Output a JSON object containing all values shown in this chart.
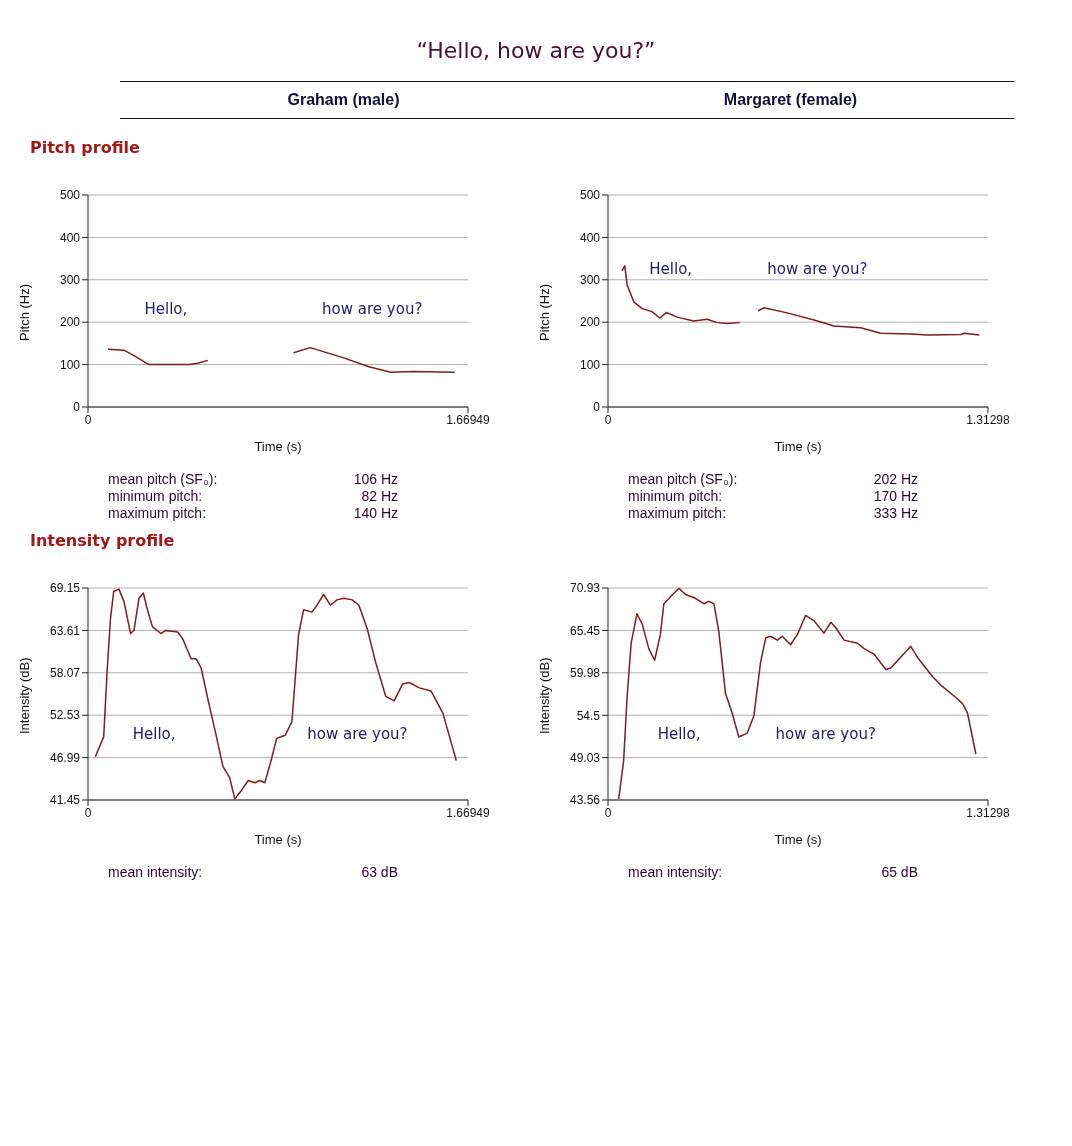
{
  "chart_data": [
    {
      "type": "line",
      "title": "“Hello, how are you?”",
      "subtitle": "Graham (male)",
      "xlabel": "Time (s)",
      "ylabel": "Pitch (Hz)",
      "xlim": [
        0,
        1.66949
      ],
      "xticks": [
        0,
        1.66949
      ],
      "ylim": [
        0,
        500
      ],
      "yticks": [
        0,
        100,
        200,
        300,
        400,
        500
      ],
      "grid": "y",
      "legend": false,
      "marker": "none",
      "line_style": "solid",
      "x": [
        0.088,
        0.158,
        0.202,
        0.268,
        0.445,
        0.482,
        0.527,
        0.7,
        0.903,
        0.976,
        1.117,
        1.234,
        1.33,
        1.426,
        1.611
      ],
      "series": [
        {
          "color": "#7a1f1f",
          "values": [
            136,
            134,
            121,
            100,
            100,
            103,
            110,
            null,
            128,
            140,
            117,
            95,
            82,
            84,
            82
          ]
        }
      ],
      "annotations": [
        "Pitch profile",
        "Hello,",
        "how are you?",
        "mean pitch (SF₀):",
        "106 Hz",
        "minimum pitch:",
        "82 Hz",
        "maximum pitch:",
        "140 Hz"
      ]
    },
    {
      "type": "line",
      "subtitle": "Margaret (female)",
      "xlabel": "Time (s)",
      "ylabel": "Pitch (Hz)",
      "xlim": [
        0,
        1.31298
      ],
      "xticks": [
        0,
        1.31298
      ],
      "ylim": [
        0,
        500
      ],
      "yticks": [
        0,
        100,
        200,
        300,
        400,
        500
      ],
      "grid": "y",
      "legend": false,
      "marker": "none",
      "line_style": "solid",
      "x": [
        0.048,
        0.058,
        0.066,
        0.089,
        0.118,
        0.152,
        0.179,
        0.202,
        0.239,
        0.296,
        0.343,
        0.377,
        0.412,
        0.456,
        0.49,
        0.519,
        0.539,
        0.619,
        0.712,
        0.781,
        0.873,
        0.942,
        1.046,
        1.104,
        1.219,
        1.231,
        1.283
      ],
      "series": [
        {
          "color": "#7a1f1f",
          "values": [
            321,
            333,
            288,
            248,
            232,
            225,
            210,
            223,
            212,
            203,
            207,
            199,
            197,
            199,
            null,
            227,
            234,
            222,
            205,
            191,
            187,
            174,
            172,
            170,
            171,
            174,
            170
          ]
        }
      ],
      "annotations": [
        "Hello,",
        "how are you?",
        "mean pitch (SF₀):",
        "202 Hz",
        "minimum pitch:",
        "170 Hz",
        "maximum pitch:",
        "333 Hz"
      ]
    },
    {
      "type": "line",
      "xlabel": "Time (s)",
      "ylabel": "Intensity (dB)",
      "xlim": [
        0,
        1.66949
      ],
      "xticks": [
        0,
        1.66949
      ],
      "ylim": [
        41.45,
        69.15
      ],
      "yticks": [
        41.45,
        46.99,
        52.53,
        58.07,
        63.61,
        69.15
      ],
      "grid": "y",
      "legend": false,
      "marker": "none",
      "line_style": "solid",
      "x": [
        0.032,
        0.069,
        0.084,
        0.099,
        0.113,
        0.136,
        0.158,
        0.187,
        0.202,
        0.224,
        0.243,
        0.261,
        0.283,
        0.32,
        0.342,
        0.394,
        0.416,
        0.453,
        0.475,
        0.497,
        0.527,
        0.563,
        0.593,
        0.622,
        0.645,
        0.674,
        0.704,
        0.733,
        0.755,
        0.777,
        0.807,
        0.829,
        0.866,
        0.896,
        0.925,
        0.947,
        0.984,
        1.006,
        1.035,
        1.065,
        1.094,
        1.124,
        1.161,
        1.19,
        1.227,
        1.264,
        1.308,
        1.345,
        1.382,
        1.411,
        1.456,
        1.507,
        1.559,
        1.618
      ],
      "series": [
        {
          "color": "#7a1f1f",
          "values": [
            47.1,
            49.7,
            58.3,
            65.2,
            68.7,
            69.0,
            67.4,
            63.2,
            63.6,
            67.8,
            68.5,
            66.3,
            64.1,
            63.2,
            63.6,
            63.4,
            62.5,
            59.9,
            59.9,
            58.7,
            54.6,
            49.9,
            45.8,
            44.4,
            41.6,
            42.7,
            44.0,
            43.7,
            44.0,
            43.7,
            46.9,
            49.5,
            49.9,
            51.7,
            63.0,
            66.3,
            66.0,
            66.9,
            68.3,
            66.9,
            67.6,
            67.8,
            67.6,
            66.9,
            63.8,
            59.4,
            55.0,
            54.4,
            56.6,
            56.8,
            56.1,
            55.7,
            52.8,
            46.6
          ]
        }
      ],
      "annotations": [
        "Intensity profile",
        "Hello,",
        "how are you?",
        "mean intensity:",
        "63 dB"
      ]
    },
    {
      "type": "line",
      "xlabel": "Time (s)",
      "ylabel": "Intensity (dB)",
      "xlim": [
        0,
        1.31298
      ],
      "xticks": [
        0,
        1.31298
      ],
      "ylim": [
        43.56,
        70.93
      ],
      "yticks": [
        43.56,
        49.03,
        54.5,
        59.98,
        65.45,
        70.93
      ],
      "grid": "y",
      "legend": false,
      "marker": "none",
      "line_style": "solid",
      "x": [
        0.037,
        0.054,
        0.066,
        0.08,
        0.1,
        0.118,
        0.141,
        0.161,
        0.181,
        0.193,
        0.216,
        0.245,
        0.268,
        0.302,
        0.331,
        0.348,
        0.366,
        0.383,
        0.406,
        0.429,
        0.452,
        0.481,
        0.504,
        0.527,
        0.545,
        0.562,
        0.585,
        0.602,
        0.631,
        0.654,
        0.683,
        0.712,
        0.746,
        0.77,
        0.787,
        0.816,
        0.862,
        0.885,
        0.919,
        0.96,
        0.977,
        1.046,
        1.069,
        1.121,
        1.15,
        1.208,
        1.225,
        1.242,
        1.271
      ],
      "series": [
        {
          "color": "#7a1f1f",
          "values": [
            43.7,
            48.6,
            56.9,
            63.8,
            67.6,
            66.3,
            63.1,
            61.6,
            64.9,
            68.9,
            69.8,
            70.9,
            70.1,
            69.6,
            68.9,
            69.2,
            68.9,
            65.3,
            57.3,
            54.8,
            51.7,
            52.2,
            54.4,
            61.3,
            64.5,
            64.7,
            64.2,
            64.7,
            63.6,
            64.9,
            67.4,
            66.7,
            65.1,
            66.5,
            65.8,
            64.2,
            63.8,
            63.1,
            62.4,
            60.4,
            60.6,
            63.4,
            62.0,
            59.5,
            58.4,
            56.6,
            56.0,
            54.8,
            49.5
          ]
        }
      ],
      "annotations": [
        "Hello,",
        "how are you?",
        "mean intensity:",
        "65 dB"
      ]
    }
  ]
}
